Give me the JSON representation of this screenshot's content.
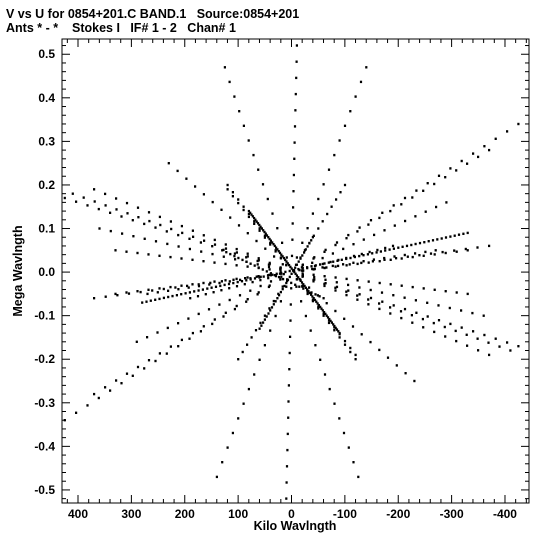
{
  "header": {
    "line1": "V vs U for 0854+201.C BAND.1   Source:0854+201",
    "line2": "Ants * - *    Stokes I   IF# 1 - 2   Chan# 1"
  },
  "chart_data": {
    "type": "scatter",
    "xlabel": "Kilo Wavlngth",
    "ylabel": "Mega Wavlngth",
    "x_reversed": true,
    "xlim": [
      430,
      -445
    ],
    "ylim": [
      -0.53,
      0.535
    ],
    "xticks": [
      400,
      300,
      200,
      100,
      0,
      -100,
      -200,
      -300,
      -400
    ],
    "xtick_labels": [
      "400",
      "300",
      "200",
      "100",
      "0",
      "-100",
      "-200",
      "-300",
      "-400"
    ],
    "yticks": [
      0.5,
      0.4,
      0.3,
      0.2,
      0.1,
      0.0,
      -0.1,
      -0.2,
      -0.3,
      -0.4,
      -0.5
    ],
    "ytick_labels": [
      "0.5",
      "0.4",
      "0.3",
      "0.2",
      "0.1",
      "0.0",
      "-0.1",
      "-0.2",
      "-0.3",
      "-0.4",
      "-0.5"
    ],
    "marker_color": "#000000",
    "series": [
      {
        "tracks": [
          {
            "end": [
              -10,
              0.52
            ],
            "n": 14
          },
          {
            "end": [
              125,
              0.47
            ],
            "n": 14
          },
          {
            "end": [
              -140,
              0.47
            ],
            "n": 14
          },
          {
            "end": [
              230,
              0.25
            ],
            "n": 14
          },
          {
            "end": [
              -370,
              0.28
            ],
            "n": 18
          },
          {
            "end": [
              -425,
              0.34
            ],
            "n": 20
          },
          {
            "end": [
              410,
              0.18
            ],
            "n": 20
          },
          {
            "end": [
              370,
              0.19
            ],
            "n": 18
          },
          {
            "end": [
              360,
              0.1
            ],
            "n": 17
          },
          {
            "end": [
              330,
              -0.05
            ],
            "n": 16
          },
          {
            "end": [
              -290,
              0.16
            ],
            "n": 15
          },
          {
            "end": [
              -370,
              0.06
            ],
            "n": 17
          },
          {
            "end": [
              -330,
              -0.05
            ],
            "n": 16
          },
          {
            "end": [
              -190,
              0.06
            ],
            "n": 13
          },
          {
            "end": [
              270,
              -0.05
            ],
            "n": 14
          },
          {
            "end": [
              -425,
              -0.17
            ],
            "n": 20
          },
          {
            "end": [
              120,
              0.19
            ],
            "n": 12
          },
          {
            "end": [
              -100,
              0.2
            ],
            "n": 12
          },
          {
            "end": [
              -120,
              -0.2
            ],
            "n": 12
          }
        ],
        "dense_tracks": [
          {
            "from": [
              80,
              0.14
            ],
            "to": [
              -90,
              -0.14
            ],
            "n": 70
          },
          {
            "from": [
              280,
              -0.07
            ],
            "to": [
              -330,
              0.09
            ],
            "n": 75
          },
          {
            "from": [
              -40,
              0.08
            ],
            "to": [
              60,
              -0.13
            ],
            "n": 30
          },
          {
            "from": [
              130,
              0.05
            ],
            "to": [
              -60,
              -0.06
            ],
            "n": 25
          }
        ]
      }
    ]
  }
}
